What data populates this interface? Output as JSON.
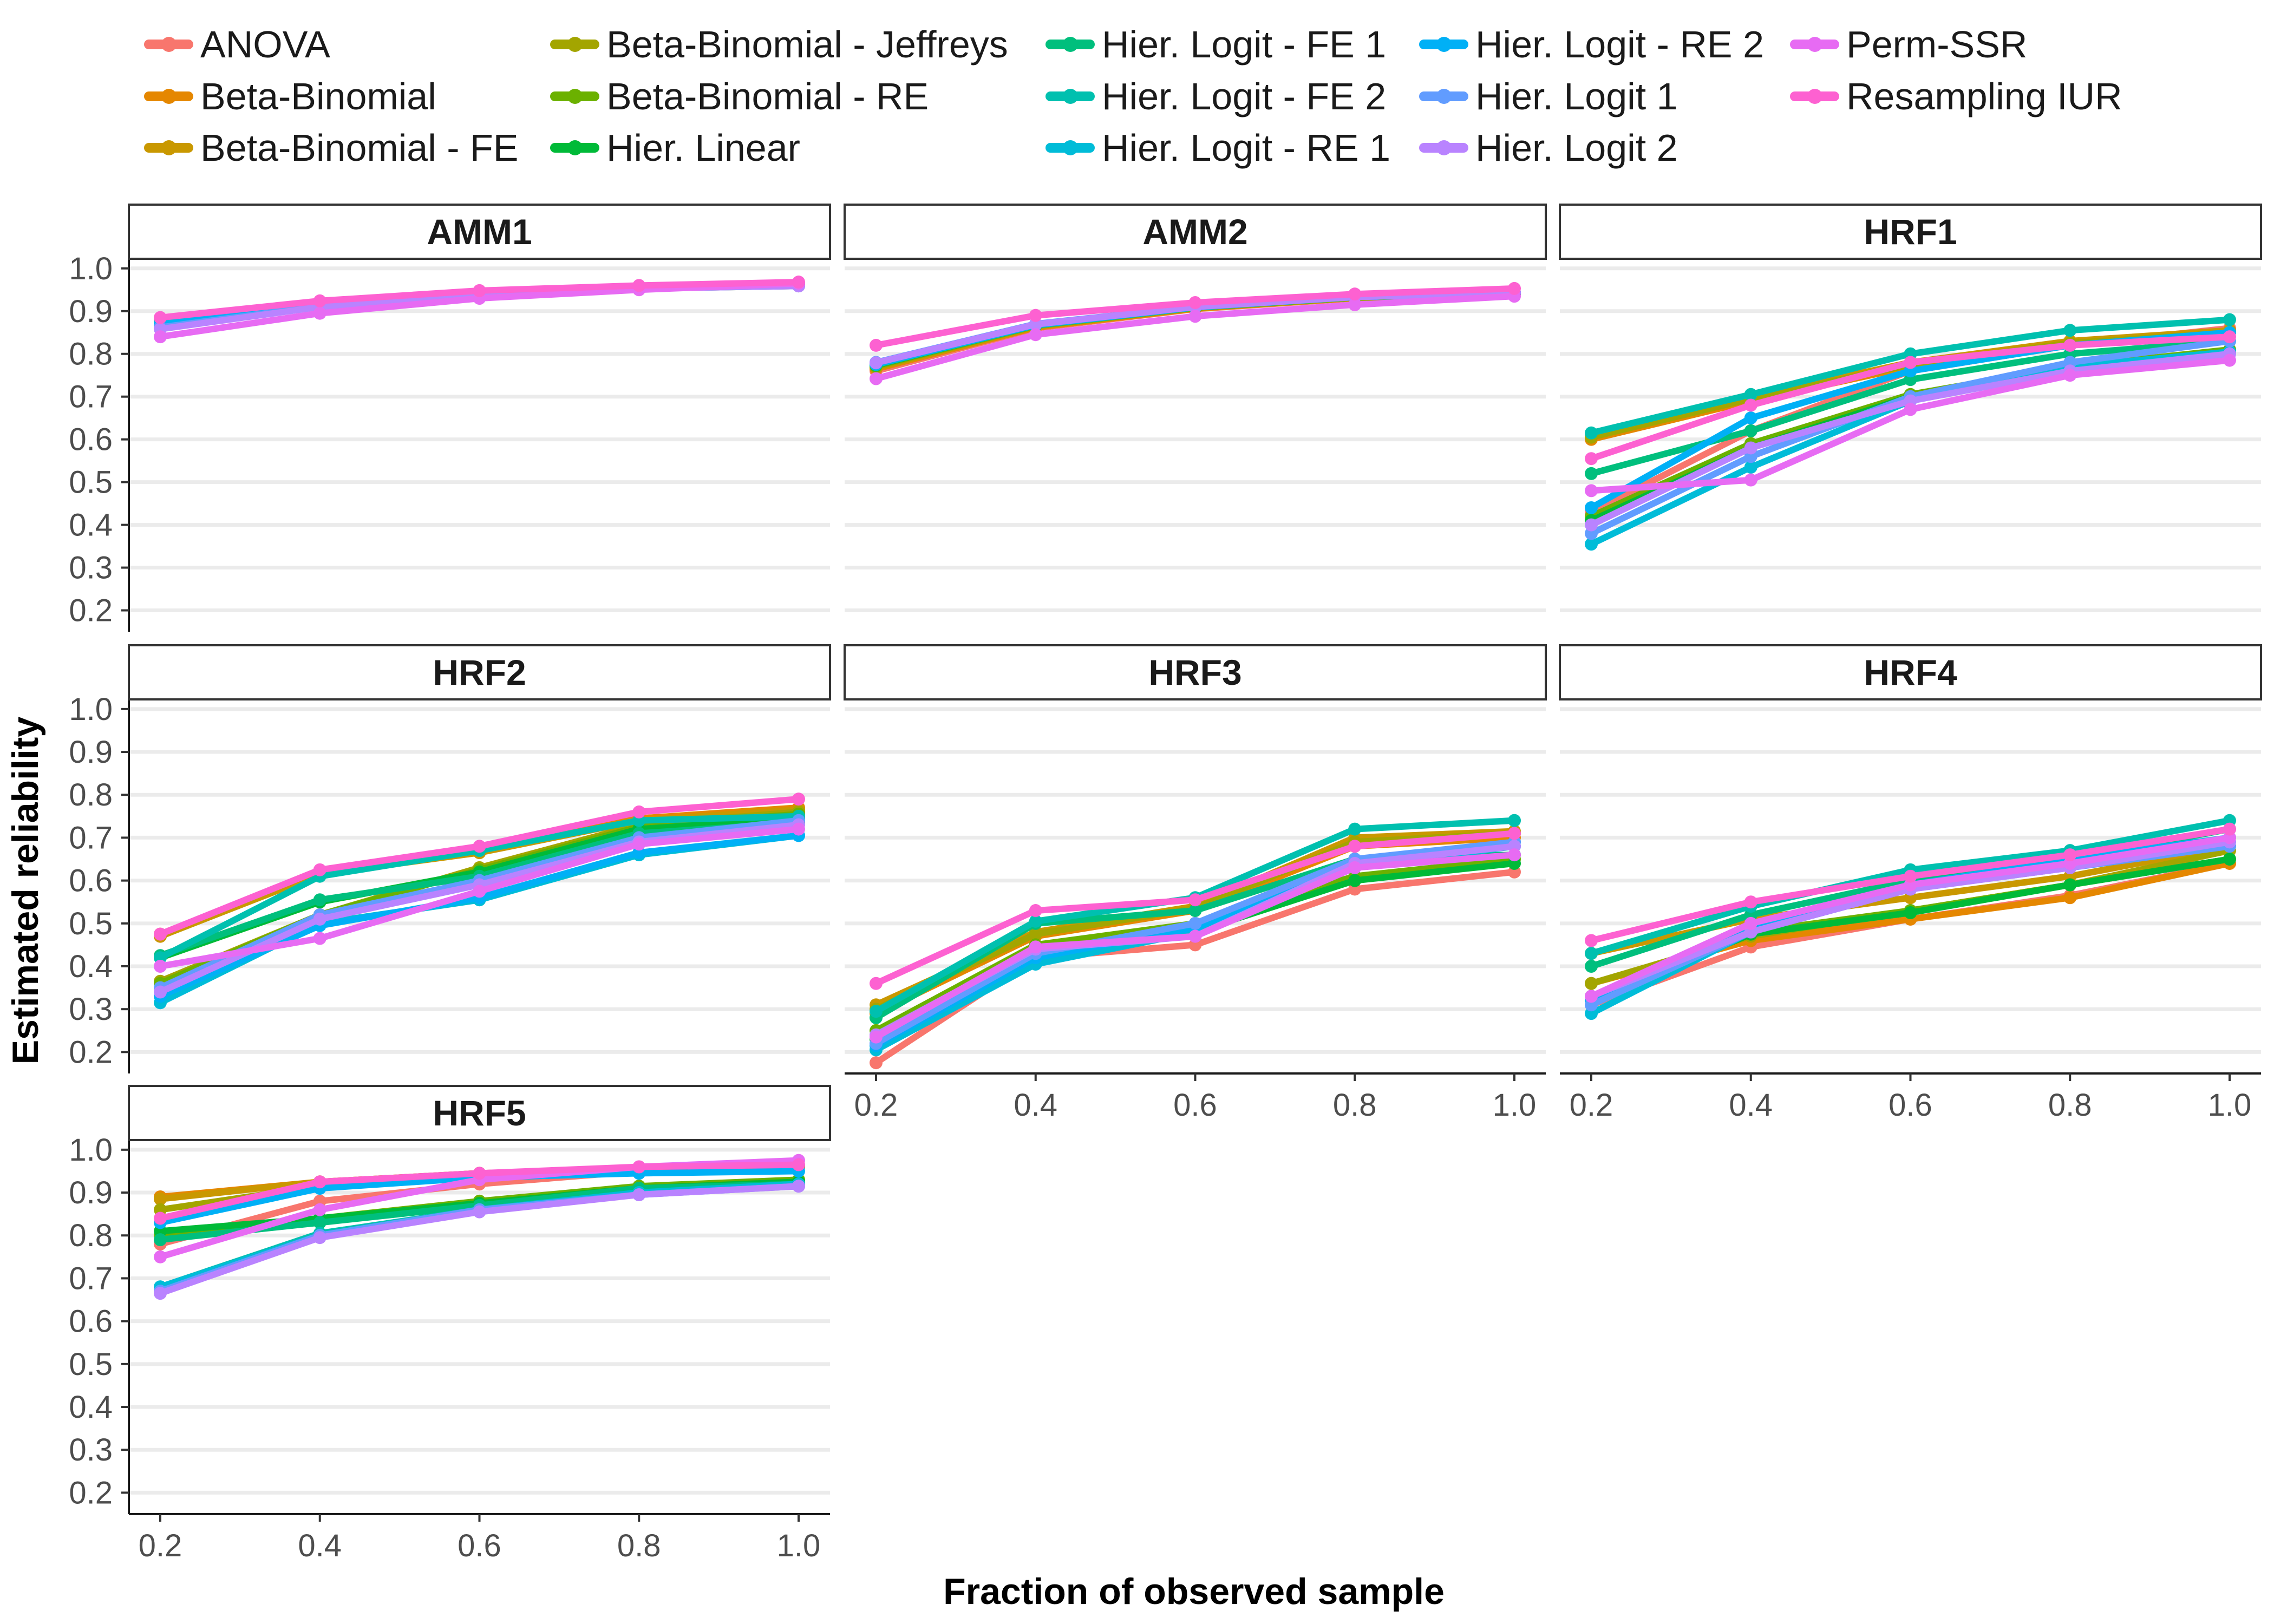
{
  "chart_data": {
    "type": "line",
    "xlabel": "Fraction of observed sample",
    "ylabel": "Estimated reliability",
    "x": [
      0.2,
      0.4,
      0.6,
      0.8,
      1.0
    ],
    "x_tick_labels": [
      "0.2",
      "0.4",
      "0.6",
      "0.8",
      "1.0"
    ],
    "ylim": [
      0.15,
      1.02
    ],
    "y_ticks": [
      0.2,
      0.3,
      0.4,
      0.5,
      0.6,
      0.7,
      0.8,
      0.9,
      1.0
    ],
    "y_tick_labels": [
      "0.2",
      "0.3",
      "0.4",
      "0.5",
      "0.6",
      "0.7",
      "0.8",
      "0.9",
      "1.0"
    ],
    "grid": "horizontal",
    "legend_position": "top",
    "series_names": [
      "ANOVA",
      "Beta-Binomial",
      "Beta-Binomial - FE",
      "Beta-Binomial - Jeffreys",
      "Beta-Binomial - RE",
      "Hier. Linear",
      "Hier. Logit - FE 1",
      "Hier. Logit - FE 2",
      "Hier. Logit - RE 1",
      "Hier. Logit - RE 2",
      "Hier. Logit 1",
      "Hier. Logit 2",
      "Perm-SSR",
      "Resampling IUR"
    ],
    "series_colors": [
      "#F8766D",
      "#E58700",
      "#C99800",
      "#A3A500",
      "#6BB100",
      "#00BA38",
      "#00BF7D",
      "#00C0AF",
      "#00BCD8",
      "#00B0F6",
      "#619CFF",
      "#B983FF",
      "#E76BF3",
      "#FD61D1"
    ],
    "panels": [
      {
        "name": "AMM1",
        "series": [
          [
            0.88,
            0.92,
            0.946,
            0.956,
            0.962
          ],
          [
            0.875,
            0.918,
            0.945,
            0.955,
            0.961
          ],
          [
            0.868,
            0.915,
            0.943,
            0.954,
            0.96
          ],
          [
            0.86,
            0.912,
            0.942,
            0.953,
            0.959
          ],
          [
            0.866,
            0.914,
            0.943,
            0.954,
            0.96
          ],
          [
            0.872,
            0.916,
            0.944,
            0.955,
            0.961
          ],
          [
            0.876,
            0.918,
            0.945,
            0.955,
            0.961
          ],
          [
            0.878,
            0.919,
            0.946,
            0.956,
            0.962
          ],
          [
            0.87,
            0.915,
            0.943,
            0.954,
            0.96
          ],
          [
            0.868,
            0.914,
            0.943,
            0.954,
            0.96
          ],
          [
            0.862,
            0.912,
            0.942,
            0.953,
            0.959
          ],
          [
            0.858,
            0.91,
            0.941,
            0.953,
            0.959
          ],
          [
            0.84,
            0.895,
            0.93,
            0.95,
            0.965
          ],
          [
            0.885,
            0.924,
            0.948,
            0.96,
            0.968
          ]
        ]
      },
      {
        "name": "AMM2",
        "series": [
          [
            0.76,
            0.86,
            0.905,
            0.93,
            0.94
          ],
          [
            0.765,
            0.862,
            0.906,
            0.931,
            0.941
          ],
          [
            0.768,
            0.864,
            0.907,
            0.931,
            0.941
          ],
          [
            0.77,
            0.865,
            0.908,
            0.932,
            0.942
          ],
          [
            0.772,
            0.866,
            0.908,
            0.932,
            0.942
          ],
          [
            0.774,
            0.867,
            0.909,
            0.933,
            0.942
          ],
          [
            0.776,
            0.868,
            0.909,
            0.933,
            0.943
          ],
          [
            0.778,
            0.869,
            0.91,
            0.934,
            0.943
          ],
          [
            0.775,
            0.867,
            0.909,
            0.933,
            0.942
          ],
          [
            0.777,
            0.868,
            0.909,
            0.933,
            0.943
          ],
          [
            0.78,
            0.87,
            0.91,
            0.934,
            0.944
          ],
          [
            0.779,
            0.869,
            0.91,
            0.933,
            0.943
          ],
          [
            0.742,
            0.845,
            0.888,
            0.915,
            0.935
          ],
          [
            0.82,
            0.89,
            0.92,
            0.94,
            0.953
          ]
        ]
      },
      {
        "name": "HRF1",
        "series": [
          [
            0.43,
            0.62,
            0.76,
            0.82,
            0.86
          ],
          [
            0.6,
            0.69,
            0.77,
            0.82,
            0.85
          ],
          [
            0.61,
            0.7,
            0.78,
            0.83,
            0.855
          ],
          [
            0.605,
            0.695,
            0.775,
            0.825,
            0.85
          ],
          [
            0.42,
            0.59,
            0.705,
            0.77,
            0.81
          ],
          [
            0.41,
            0.58,
            0.7,
            0.765,
            0.805
          ],
          [
            0.52,
            0.62,
            0.74,
            0.8,
            0.83
          ],
          [
            0.615,
            0.705,
            0.8,
            0.855,
            0.88
          ],
          [
            0.355,
            0.535,
            0.69,
            0.77,
            0.805
          ],
          [
            0.44,
            0.65,
            0.76,
            0.82,
            0.85
          ],
          [
            0.38,
            0.56,
            0.7,
            0.78,
            0.83
          ],
          [
            0.4,
            0.58,
            0.69,
            0.76,
            0.8
          ],
          [
            0.48,
            0.505,
            0.67,
            0.75,
            0.785
          ],
          [
            0.555,
            0.68,
            0.78,
            0.82,
            0.84
          ]
        ]
      },
      {
        "name": "HRF2",
        "series": [
          [
            0.47,
            0.62,
            0.67,
            0.74,
            0.76
          ],
          [
            0.475,
            0.62,
            0.675,
            0.745,
            0.77
          ],
          [
            0.47,
            0.615,
            0.665,
            0.74,
            0.765
          ],
          [
            0.365,
            0.52,
            0.63,
            0.73,
            0.76
          ],
          [
            0.36,
            0.52,
            0.625,
            0.725,
            0.755
          ],
          [
            0.42,
            0.55,
            0.62,
            0.72,
            0.745
          ],
          [
            0.425,
            0.555,
            0.61,
            0.71,
            0.735
          ],
          [
            0.42,
            0.61,
            0.67,
            0.74,
            0.75
          ],
          [
            0.315,
            0.5,
            0.555,
            0.66,
            0.705
          ],
          [
            0.33,
            0.495,
            0.56,
            0.665,
            0.705
          ],
          [
            0.35,
            0.52,
            0.6,
            0.7,
            0.74
          ],
          [
            0.34,
            0.51,
            0.59,
            0.69,
            0.73
          ],
          [
            0.4,
            0.465,
            0.575,
            0.685,
            0.72
          ],
          [
            0.475,
            0.625,
            0.68,
            0.76,
            0.79
          ]
        ]
      },
      {
        "name": "HRF3",
        "series": [
          [
            0.175,
            0.42,
            0.45,
            0.58,
            0.62
          ],
          [
            0.29,
            0.47,
            0.53,
            0.68,
            0.7
          ],
          [
            0.31,
            0.48,
            0.54,
            0.7,
            0.715
          ],
          [
            0.3,
            0.475,
            0.535,
            0.69,
            0.71
          ],
          [
            0.25,
            0.45,
            0.5,
            0.61,
            0.65
          ],
          [
            0.23,
            0.44,
            0.48,
            0.6,
            0.64
          ],
          [
            0.28,
            0.5,
            0.53,
            0.65,
            0.66
          ],
          [
            0.295,
            0.505,
            0.56,
            0.72,
            0.74
          ],
          [
            0.205,
            0.405,
            0.48,
            0.63,
            0.68
          ],
          [
            0.215,
            0.42,
            0.49,
            0.64,
            0.69
          ],
          [
            0.22,
            0.43,
            0.5,
            0.65,
            0.69
          ],
          [
            0.24,
            0.44,
            0.47,
            0.64,
            0.68
          ],
          [
            0.235,
            0.445,
            0.47,
            0.63,
            0.66
          ],
          [
            0.36,
            0.53,
            0.555,
            0.68,
            0.71
          ]
        ]
      },
      {
        "name": "HRF4",
        "series": [
          [
            0.31,
            0.445,
            0.51,
            0.565,
            0.64
          ],
          [
            0.36,
            0.46,
            0.51,
            0.56,
            0.64
          ],
          [
            0.43,
            0.51,
            0.56,
            0.61,
            0.68
          ],
          [
            0.36,
            0.47,
            0.53,
            0.59,
            0.67
          ],
          [
            0.33,
            0.48,
            0.53,
            0.59,
            0.65
          ],
          [
            0.32,
            0.475,
            0.525,
            0.59,
            0.65
          ],
          [
            0.4,
            0.52,
            0.6,
            0.65,
            0.72
          ],
          [
            0.43,
            0.54,
            0.625,
            0.67,
            0.74
          ],
          [
            0.29,
            0.48,
            0.58,
            0.64,
            0.69
          ],
          [
            0.32,
            0.49,
            0.59,
            0.65,
            0.7
          ],
          [
            0.31,
            0.48,
            0.58,
            0.63,
            0.68
          ],
          [
            0.33,
            0.48,
            0.58,
            0.63,
            0.69
          ],
          [
            0.33,
            0.5,
            0.59,
            0.64,
            0.7
          ],
          [
            0.46,
            0.55,
            0.61,
            0.66,
            0.72
          ]
        ]
      },
      {
        "name": "HRF5",
        "series": [
          [
            0.78,
            0.88,
            0.92,
            0.95,
            0.96
          ],
          [
            0.89,
            0.925,
            0.945,
            0.955,
            0.96
          ],
          [
            0.885,
            0.925,
            0.945,
            0.955,
            0.962
          ],
          [
            0.86,
            0.915,
            0.94,
            0.955,
            0.962
          ],
          [
            0.8,
            0.84,
            0.88,
            0.915,
            0.93
          ],
          [
            0.81,
            0.84,
            0.875,
            0.91,
            0.925
          ],
          [
            0.79,
            0.83,
            0.87,
            0.91,
            0.92
          ],
          [
            0.68,
            0.805,
            0.86,
            0.9,
            0.92
          ],
          [
            0.68,
            0.8,
            0.86,
            0.9,
            0.92
          ],
          [
            0.83,
            0.91,
            0.935,
            0.945,
            0.95
          ],
          [
            0.67,
            0.8,
            0.86,
            0.895,
            0.915
          ],
          [
            0.665,
            0.795,
            0.855,
            0.895,
            0.915
          ],
          [
            0.75,
            0.86,
            0.93,
            0.96,
            0.975
          ],
          [
            0.84,
            0.925,
            0.945,
            0.96,
            0.965
          ]
        ]
      }
    ]
  }
}
